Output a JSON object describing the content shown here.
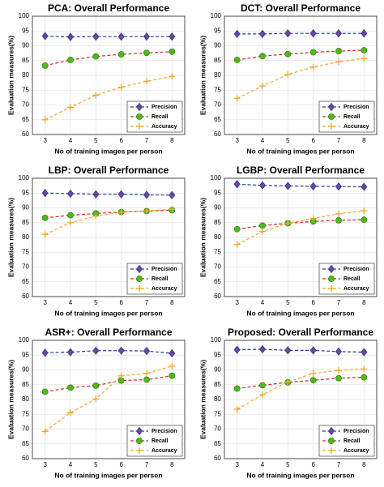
{
  "chart_data": [
    {
      "type": "line",
      "title": "PCA: Overall Performance",
      "xlabel": "No of training images per person",
      "ylabel": "Evaluation measures(%)",
      "x": [
        3,
        4,
        5,
        6,
        7,
        8
      ],
      "xlim": [
        2.5,
        8.5
      ],
      "xticks": [
        3,
        4,
        5,
        6,
        7,
        8
      ],
      "ylim": [
        60,
        100
      ],
      "yticks": [
        60,
        65,
        70,
        75,
        80,
        85,
        90,
        95,
        100
      ],
      "grid": true,
      "legend": "lower right",
      "series": [
        {
          "name": "Precision",
          "color": "#1f3f8f",
          "marker": "diamond",
          "marker_color": "#7b3fa0",
          "values": [
            93.3,
            93.0,
            93.1,
            93.1,
            93.1,
            93.1
          ]
        },
        {
          "name": "Recall",
          "color": "#d62828",
          "marker": "circle",
          "marker_color": "#4cbb17",
          "values": [
            83.3,
            85.2,
            86.4,
            87.1,
            87.6,
            88.0
          ]
        },
        {
          "name": "Accuracy",
          "color": "#f0a830",
          "marker": "plus",
          "marker_color": "#f0a830",
          "values": [
            65.0,
            69.2,
            73.3,
            76.0,
            78.0,
            79.6
          ]
        }
      ]
    },
    {
      "type": "line",
      "title": "DCT: Overall Performance",
      "xlabel": "No of training images per person",
      "ylabel": "Evaluation measures(%)",
      "x": [
        3,
        4,
        5,
        6,
        7,
        8
      ],
      "xlim": [
        2.5,
        8.5
      ],
      "xticks": [
        3,
        4,
        5,
        6,
        7,
        8
      ],
      "ylim": [
        60,
        100
      ],
      "yticks": [
        60,
        65,
        70,
        75,
        80,
        85,
        90,
        95,
        100
      ],
      "grid": true,
      "legend": "lower right",
      "series": [
        {
          "name": "Precision",
          "color": "#1f3f8f",
          "marker": "diamond",
          "marker_color": "#7b3fa0",
          "values": [
            94.0,
            94.0,
            94.2,
            94.2,
            94.2,
            94.2
          ]
        },
        {
          "name": "Recall",
          "color": "#d62828",
          "marker": "circle",
          "marker_color": "#4cbb17",
          "values": [
            85.2,
            86.5,
            87.2,
            87.8,
            88.2,
            88.5
          ]
        },
        {
          "name": "Accuracy",
          "color": "#f0a830",
          "marker": "plus",
          "marker_color": "#f0a830",
          "values": [
            72.2,
            76.4,
            80.3,
            82.8,
            84.6,
            85.7
          ]
        }
      ]
    },
    {
      "type": "line",
      "title": "LBP: Overall Performance",
      "xlabel": "No of training images per person",
      "ylabel": "Evaluation measures(%)",
      "x": [
        3,
        4,
        5,
        6,
        7,
        8
      ],
      "xlim": [
        2.5,
        8.5
      ],
      "xticks": [
        3,
        4,
        5,
        6,
        7,
        8
      ],
      "ylim": [
        60,
        100
      ],
      "yticks": [
        60,
        65,
        70,
        75,
        80,
        85,
        90,
        95,
        100
      ],
      "grid": true,
      "legend": "lower right",
      "series": [
        {
          "name": "Precision",
          "color": "#1f3f8f",
          "marker": "diamond",
          "marker_color": "#7b3fa0",
          "values": [
            95.0,
            94.8,
            94.6,
            94.6,
            94.4,
            94.3
          ]
        },
        {
          "name": "Recall",
          "color": "#d62828",
          "marker": "circle",
          "marker_color": "#4cbb17",
          "values": [
            86.6,
            87.5,
            88.1,
            88.6,
            88.9,
            89.2
          ]
        },
        {
          "name": "Accuracy",
          "color": "#f0a830",
          "marker": "plus",
          "marker_color": "#f0a830",
          "values": [
            81.0,
            85.0,
            87.2,
            88.5,
            89.0,
            89.5
          ]
        }
      ]
    },
    {
      "type": "line",
      "title": "LGBP: Overall Performance",
      "xlabel": "No of training images per person",
      "ylabel": "Evaluation measures(%)",
      "x": [
        3,
        4,
        5,
        6,
        7,
        8
      ],
      "xlim": [
        2.5,
        8.5
      ],
      "xticks": [
        3,
        4,
        5,
        6,
        7,
        8
      ],
      "ylim": [
        60,
        100
      ],
      "yticks": [
        60,
        65,
        70,
        75,
        80,
        85,
        90,
        95,
        100
      ],
      "grid": true,
      "legend": "lower right",
      "series": [
        {
          "name": "Precision",
          "color": "#1f3f8f",
          "marker": "diamond",
          "marker_color": "#7b3fa0",
          "values": [
            98.0,
            97.6,
            97.4,
            97.3,
            97.2,
            97.1
          ]
        },
        {
          "name": "Recall",
          "color": "#d62828",
          "marker": "circle",
          "marker_color": "#4cbb17",
          "values": [
            82.8,
            84.0,
            84.8,
            85.4,
            85.8,
            86.0
          ]
        },
        {
          "name": "Accuracy",
          "color": "#f0a830",
          "marker": "plus",
          "marker_color": "#f0a830",
          "values": [
            77.6,
            82.0,
            84.8,
            86.4,
            88.0,
            89.0
          ]
        }
      ]
    },
    {
      "type": "line",
      "title": "ASR+: Overall Performance",
      "xlabel": "No of training images per person",
      "ylabel": "Evaluation measures(%)",
      "x": [
        3,
        4,
        5,
        6,
        7,
        8
      ],
      "xlim": [
        2.5,
        8.5
      ],
      "xticks": [
        3,
        4,
        5,
        6,
        7,
        8
      ],
      "ylim": [
        60,
        100
      ],
      "yticks": [
        60,
        65,
        70,
        75,
        80,
        85,
        90,
        95,
        100
      ],
      "grid": true,
      "legend": "lower right",
      "series": [
        {
          "name": "Precision",
          "color": "#1f3f8f",
          "marker": "diamond",
          "marker_color": "#7b3fa0",
          "values": [
            95.8,
            96.0,
            96.5,
            96.5,
            96.4,
            95.6
          ]
        },
        {
          "name": "Recall",
          "color": "#d62828",
          "marker": "circle",
          "marker_color": "#4cbb17",
          "values": [
            82.6,
            84.0,
            84.7,
            86.4,
            86.7,
            88.0
          ]
        },
        {
          "name": "Accuracy",
          "color": "#f0a830",
          "marker": "plus",
          "marker_color": "#f0a830",
          "values": [
            69.2,
            75.5,
            80.2,
            88.0,
            88.8,
            91.3
          ]
        }
      ]
    },
    {
      "type": "line",
      "title": "Proposed: Overall Performance",
      "xlabel": "No of training images per person",
      "ylabel": "Evaluation measures(%)",
      "x": [
        3,
        4,
        5,
        6,
        7,
        8
      ],
      "xlim": [
        2.5,
        8.5
      ],
      "xticks": [
        3,
        4,
        5,
        6,
        7,
        8
      ],
      "ylim": [
        60,
        100
      ],
      "yticks": [
        60,
        65,
        70,
        75,
        80,
        85,
        90,
        95,
        100
      ],
      "grid": true,
      "legend": "lower right",
      "series": [
        {
          "name": "Precision",
          "color": "#1f3f8f",
          "marker": "diamond",
          "marker_color": "#7b3fa0",
          "values": [
            96.8,
            97.0,
            96.6,
            96.6,
            96.2,
            96.0
          ]
        },
        {
          "name": "Recall",
          "color": "#d62828",
          "marker": "circle",
          "marker_color": "#4cbb17",
          "values": [
            83.7,
            84.8,
            85.8,
            86.5,
            87.2,
            87.5
          ]
        },
        {
          "name": "Accuracy",
          "color": "#f0a830",
          "marker": "plus",
          "marker_color": "#f0a830",
          "values": [
            76.7,
            81.6,
            86.0,
            88.8,
            89.8,
            90.3
          ]
        }
      ]
    }
  ]
}
